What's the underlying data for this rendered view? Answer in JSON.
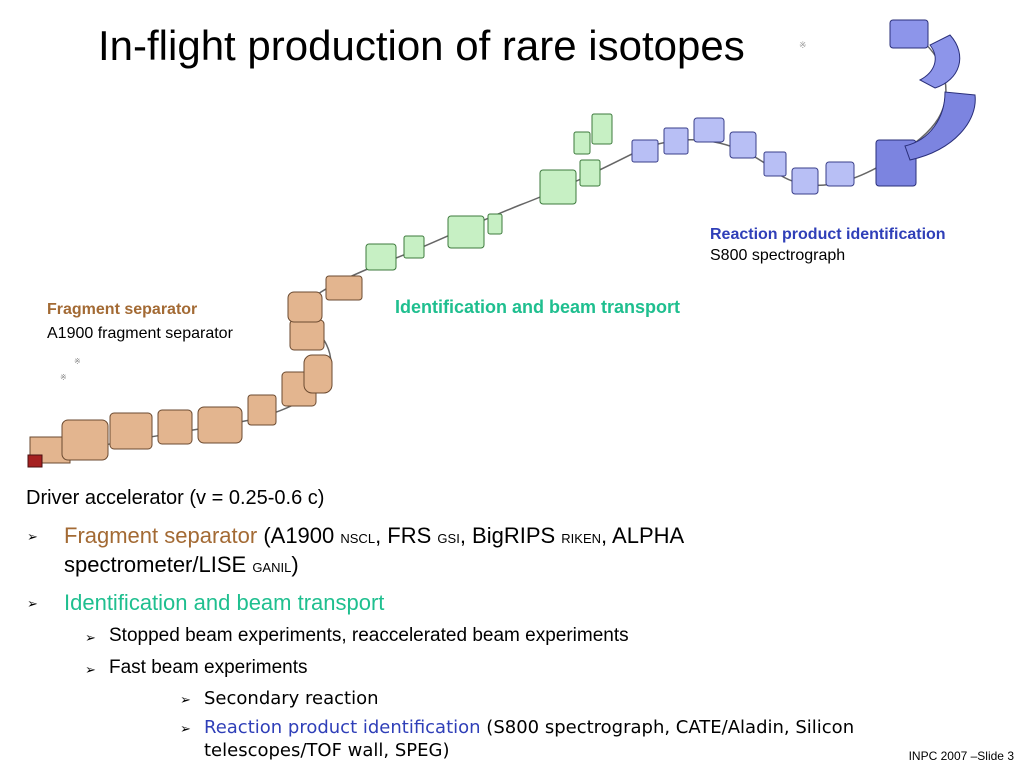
{
  "slide": {
    "title": "In-flight production of rare isotopes",
    "footer": "INPC 2007 –Slide 3"
  },
  "labels": {
    "fragment_heading": "Fragment separator",
    "fragment_sub": "A1900 fragment separator",
    "ident_heading": "Identification and beam transport",
    "reaction_heading": "Reaction product identification",
    "reaction_sub": "S800 spectrograph"
  },
  "bullets": {
    "l0": "Driver accelerator (v = 0.25-0.6 c)",
    "l1_colored": "Fragment separator",
    "l1_p1": " (A1900 ",
    "l1_s1": "NSCL",
    "l1_p2": ", FRS ",
    "l1_s2": "GSI",
    "l1_p3": ", BigRIPS ",
    "l1_s3": "RIKEN",
    "l1_p4": ", ALPHA",
    "l1_cont": "spectrometer/LISE ",
    "l1_s4": "GANIL",
    "l1_end": ")",
    "l2": "Identification and beam transport",
    "l3": "Stopped beam experiments, reaccelerated beam experiments",
    "l4": "Fast beam experiments",
    "l5": "Secondary reaction",
    "l6_colored": "Reaction product identification",
    "l6_rest": " (S800 spectrograph, CATE/Aladin, Silicon",
    "l6_cont": "telescopes/TOF wall, SPEG)"
  },
  "colors": {
    "fragment": "#a36a34",
    "ident": "#1fbf8f",
    "reaction": "#2f3fb8",
    "magnet_orange": "#e3b58f",
    "magnet_green": "#c7f0c4",
    "magnet_blue": "#b8bff5"
  },
  "icons": [
    "bullet-arrow-icon",
    "beamline-diagram"
  ]
}
